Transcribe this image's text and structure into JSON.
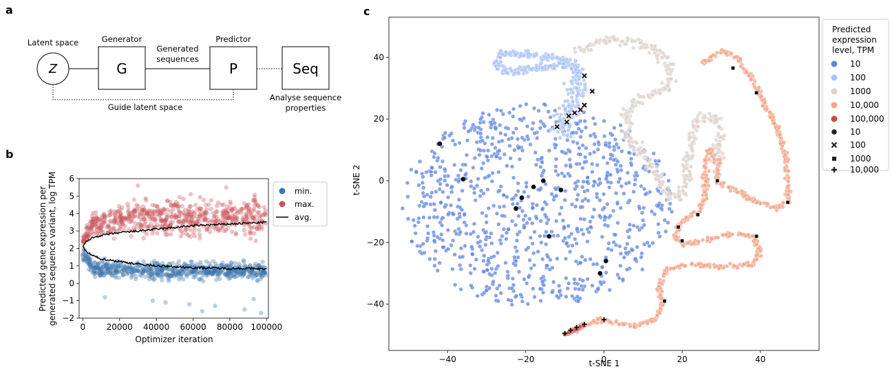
{
  "panels": {
    "a": "a",
    "b": "b",
    "c": "c"
  },
  "diagram": {
    "latent_label": "Latent space",
    "latent_symbol": "Z",
    "generator_label": "Generator",
    "generator_symbol": "G",
    "generated_label_1": "Generated",
    "generated_label_2": "sequences",
    "predictor_label": "Predictor",
    "predictor_symbol": "P",
    "seq_symbol": "Seq",
    "guide_label": "Guide latent space",
    "analyse_label_1": "Analyse sequence",
    "analyse_label_2": "properties"
  },
  "chart_data": [
    {
      "type": "scatter",
      "title": "",
      "xlabel": "Optimizer iteration",
      "ylabel_1": "Predicted gene expression per",
      "ylabel_2": "generated sequence variant, log TPM",
      "xlim": [
        -2000,
        101000
      ],
      "ylim": [
        -2,
        6
      ],
      "x_ticks": [
        0,
        20000,
        40000,
        60000,
        80000,
        100000
      ],
      "x_tick_labels": [
        "0",
        "20000",
        "40000",
        "60000",
        "80000",
        "100000"
      ],
      "y_ticks": [
        -2,
        -1,
        0,
        1,
        2,
        3,
        4,
        5,
        6
      ],
      "y_tick_labels": [
        "−2",
        "−1",
        "0",
        "1",
        "2",
        "3",
        "4",
        "5",
        "6"
      ],
      "grid": false,
      "legend_position": "right",
      "series": [
        {
          "name": "min.",
          "color": "#3b76ad",
          "band": {
            "x": [
              0,
              5000,
              20000,
              50000,
              100000
            ],
            "low": [
              1.2,
              0.3,
              0.1,
              0.0,
              0.0
            ],
            "high": [
              2.2,
              1.6,
              1.4,
              1.4,
              1.4
            ]
          }
        },
        {
          "name": "max.",
          "color": "#c9545a",
          "band": {
            "x": [
              0,
              5000,
              20000,
              50000,
              100000
            ],
            "low": [
              2.0,
              2.4,
              2.4,
              2.3,
              2.3
            ],
            "high": [
              2.8,
              4.3,
              4.9,
              5.2,
              5.4
            ]
          }
        },
        {
          "name": "avg.",
          "color": "#000000",
          "upper": {
            "x": [
              0,
              2000,
              5000,
              10000,
              20000,
              30000,
              40000,
              50000,
              60000,
              70000,
              80000,
              90000,
              100000
            ],
            "y": [
              2.1,
              2.4,
              2.6,
              2.75,
              2.9,
              3.0,
              3.1,
              3.2,
              3.3,
              3.35,
              3.4,
              3.45,
              3.5
            ]
          },
          "lower": {
            "x": [
              0,
              2000,
              5000,
              10000,
              20000,
              30000,
              40000,
              50000,
              60000,
              70000,
              80000,
              90000,
              100000
            ],
            "y": [
              2.1,
              1.8,
              1.6,
              1.4,
              1.25,
              1.1,
              1.0,
              0.95,
              0.9,
              0.88,
              0.85,
              0.85,
              0.82
            ]
          }
        }
      ],
      "outliers": [
        [
          12000,
          -0.8
        ],
        [
          38000,
          -1.0
        ],
        [
          45000,
          -1.1
        ],
        [
          58000,
          -1.2
        ],
        [
          65000,
          -1.6
        ],
        [
          72000,
          -1.3
        ],
        [
          88000,
          -1.5
        ],
        [
          93000,
          -0.9
        ],
        [
          97000,
          -1.7
        ],
        [
          30000,
          5.6
        ],
        [
          78000,
          5.5
        ]
      ]
    },
    {
      "type": "scatter",
      "title": "",
      "xlabel": "t-SNE 1",
      "ylabel": "t-SNE 2",
      "xlim": [
        -55,
        55
      ],
      "ylim": [
        -55,
        53
      ],
      "x_ticks": [
        -40,
        -20,
        0,
        20,
        40
      ],
      "x_tick_labels": [
        "−40",
        "−20",
        "0",
        "20",
        "40"
      ],
      "y_ticks": [
        -40,
        -20,
        0,
        20,
        40
      ],
      "y_tick_labels": [
        "−40",
        "−20",
        "0",
        "20",
        "40"
      ],
      "grid": false,
      "legend_position": "right",
      "legend_title": [
        "Predicted",
        "expression",
        "level, TPM"
      ],
      "hue_legend": [
        {
          "label": "10",
          "color": "#5f86e2"
        },
        {
          "label": "100",
          "color": "#a9c3f3"
        },
        {
          "label": "1000",
          "color": "#dcd2cc"
        },
        {
          "label": "10,000",
          "color": "#f3a487"
        },
        {
          "label": "100,000",
          "color": "#cc4c43"
        }
      ],
      "style_legend": [
        {
          "label": "10",
          "marker": "circle"
        },
        {
          "label": "100",
          "marker": "x"
        },
        {
          "label": "1000",
          "marker": "square"
        },
        {
          "label": "10,000",
          "marker": "plus"
        }
      ],
      "clusters": [
        {
          "level": "10",
          "color": "#5f86e2",
          "shape": "disc",
          "center": [
            -17,
            -8
          ],
          "radius": 33
        },
        {
          "level": "100",
          "color": "#a9c3f3",
          "shape": "cone",
          "path": [
            [
              -11,
              14
            ],
            [
              -10,
              20
            ],
            [
              -8,
              24
            ],
            [
              -7,
              28
            ],
            [
              -6,
              33
            ],
            [
              -8,
              38
            ],
            [
              -14,
              40
            ],
            [
              -20,
              41
            ],
            [
              -26,
              41
            ],
            [
              -28,
              38
            ],
            [
              -25,
              35
            ],
            [
              -20,
              36
            ],
            [
              -14,
              37
            ],
            [
              -8,
              37
            ],
            [
              -6,
              35
            ]
          ]
        },
        {
          "level": "1000",
          "color": "#dcd2cc",
          "shape": "curve",
          "path": [
            [
              -6,
              42
            ],
            [
              0,
              46
            ],
            [
              8,
              45
            ],
            [
              14,
              42
            ],
            [
              17,
              37
            ],
            [
              16,
              30
            ],
            [
              10,
              27
            ],
            [
              6,
              22
            ],
            [
              6,
              15
            ],
            [
              9,
              10
            ],
            [
              12,
              5
            ],
            [
              14,
              0
            ],
            [
              16,
              -4
            ],
            [
              19,
              -6
            ],
            [
              21,
              -2
            ],
            [
              21,
              4
            ],
            [
              22,
              12
            ],
            [
              24,
              20
            ],
            [
              28,
              21
            ],
            [
              30,
              16
            ],
            [
              29,
              9
            ],
            [
              29,
              2
            ]
          ]
        },
        {
          "level": "10,000",
          "color": "#f3a487",
          "shape": "curve",
          "path": [
            [
              25,
              38
            ],
            [
              30,
              42
            ],
            [
              34,
              40
            ],
            [
              38,
              33
            ],
            [
              41,
              25
            ],
            [
              44,
              18
            ],
            [
              46,
              10
            ],
            [
              47,
              2
            ],
            [
              47,
              -7
            ],
            [
              44,
              -9
            ],
            [
              38,
              -6
            ],
            [
              33,
              -3
            ],
            [
              29,
              0
            ],
            [
              29,
              6
            ],
            [
              27,
              10
            ],
            [
              26,
              5
            ],
            [
              26,
              -5
            ],
            [
              24,
              -10
            ],
            [
              20,
              -13
            ],
            [
              18,
              -18
            ],
            [
              20,
              -21
            ],
            [
              27,
              -19
            ],
            [
              33,
              -17
            ],
            [
              38,
              -18
            ],
            [
              40,
              -23
            ],
            [
              38,
              -27
            ],
            [
              30,
              -28
            ],
            [
              22,
              -27
            ],
            [
              16,
              -29
            ],
            [
              14,
              -34
            ],
            [
              15,
              -40
            ],
            [
              13,
              -45
            ],
            [
              8,
              -47
            ],
            [
              3,
              -46
            ],
            [
              -1,
              -45
            ],
            [
              -5,
              -47
            ],
            [
              -10,
              -50
            ]
          ]
        }
      ],
      "markers": {
        "circle": [
          [
            -42,
            12
          ],
          [
            -36,
            0.5
          ],
          [
            -21,
            -5.5
          ],
          [
            -18,
            -2
          ],
          [
            -15.5,
            0
          ],
          [
            -11,
            -3
          ],
          [
            -22.5,
            -9
          ],
          [
            -14,
            -18
          ],
          [
            0.5,
            -26
          ],
          [
            -1,
            -30
          ]
        ],
        "x": [
          [
            -5,
            34
          ],
          [
            -3,
            29
          ],
          [
            -5,
            24.5
          ],
          [
            -6,
            23
          ],
          [
            -7.5,
            22
          ],
          [
            -9,
            21
          ],
          [
            -9.5,
            19
          ],
          [
            -12,
            17.5
          ]
        ],
        "square": [
          [
            33,
            36.5
          ],
          [
            39,
            28.5
          ],
          [
            29,
            0
          ],
          [
            47,
            -7
          ],
          [
            24,
            -11
          ],
          [
            19,
            -15
          ],
          [
            20,
            -19.5
          ],
          [
            39,
            -18
          ],
          [
            15.5,
            -39
          ]
        ],
        "plus": [
          [
            0,
            -45
          ],
          [
            -5,
            -46.5
          ],
          [
            -7,
            -47.5
          ],
          [
            -8.5,
            -48.5
          ],
          [
            -10,
            -49.5
          ]
        ]
      }
    }
  ]
}
